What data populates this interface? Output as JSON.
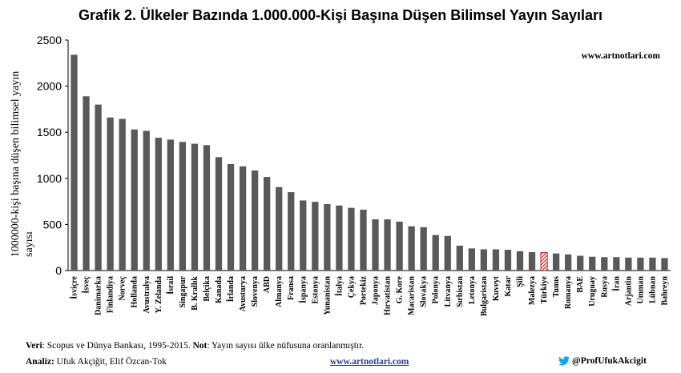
{
  "title": "Grafik 2. Ülkeler Bazında 1.000.000-Kişi Başına Düşen Bilimsel Yayın Sayıları",
  "watermark": "www.artnotlari.com",
  "footer": {
    "source_label": "Veri",
    "source_text": ": Scopus ve Dünya Bankası, 1995-2015. ",
    "note_label": "Not",
    "note_text": ": Yayın sayısı ülke nüfusuna oranlanmıştır.",
    "analysis_label": "Analiz:",
    "analysis_text": " Ufuk Akçiğit, Elif Özcan-Tok",
    "site": "www.artnotlari.com",
    "twitter": "@ProfUfukAkcigit"
  },
  "colors": {
    "bar": "#595959",
    "highlight": "#c00000",
    "twitter": "#1da1f2"
  },
  "icons": {
    "twitter": "twitter-bird-icon"
  },
  "chart_data": {
    "type": "bar",
    "title": "Grafik 2. Ülkeler Bazında 1.000.000-Kişi Başına Düşen Bilimsel Yayın Sayıları",
    "xlabel": "",
    "ylabel": "1000000-kişi başına düşen bilimsel yayın sayısı",
    "ylim": [
      0,
      2500
    ],
    "yticks": [
      0,
      500,
      1000,
      1500,
      2000,
      2500
    ],
    "grid": false,
    "highlight": "Türkiye",
    "categories": [
      "İsviçre",
      "İsveç",
      "Danimarka",
      "Finlandiya",
      "Norveç",
      "Hollanda",
      "Avustralya",
      "Y. Zelanda",
      "İsrail",
      "Singapur",
      "B. Krallık",
      "Belçika",
      "Kanada",
      "İrlanda",
      "Avusturya",
      "Slovenya",
      "ABD",
      "Almanya",
      "Fransa",
      "İspanya",
      "Estonya",
      "Yunanistan",
      "İtalya",
      "Çekya",
      "Portekiz",
      "Japonya",
      "Hırvatistan",
      "G. Kore",
      "Macaristan",
      "Slovakya",
      "Polonya",
      "Litvanya",
      "Sırbistan",
      "Letonya",
      "Bulgaristan",
      "Kuveyt",
      "Katar",
      "Şili",
      "Malezya",
      "Türkiye",
      "Tunus",
      "Romanya",
      "BAE",
      "Uruguay",
      "Rusya",
      "İran",
      "Arjantin",
      "Umman",
      "Lübnan",
      "Bahreyn"
    ],
    "values": [
      2340,
      1890,
      1800,
      1660,
      1645,
      1530,
      1515,
      1440,
      1420,
      1395,
      1375,
      1360,
      1230,
      1155,
      1130,
      1085,
      1015,
      905,
      850,
      760,
      745,
      720,
      705,
      680,
      660,
      555,
      555,
      530,
      480,
      470,
      385,
      375,
      270,
      240,
      230,
      230,
      225,
      210,
      200,
      195,
      185,
      175,
      160,
      150,
      145,
      145,
      140,
      140,
      140,
      135
    ]
  }
}
